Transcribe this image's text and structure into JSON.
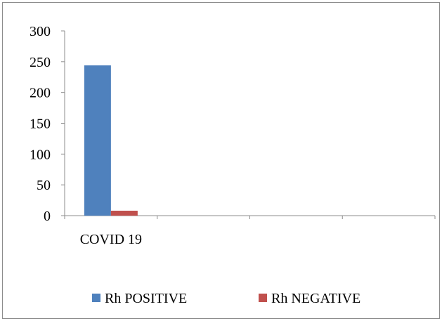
{
  "chart_data": {
    "type": "bar",
    "categories": [
      "COVID 19",
      "",
      "",
      ""
    ],
    "series": [
      {
        "name": "Rh POSITIVE",
        "color": "#4F81BD",
        "values": [
          244,
          0,
          0,
          0
        ]
      },
      {
        "name": "Rh NEGATIVE",
        "color": "#C0504D",
        "values": [
          8,
          0,
          0,
          0
        ]
      }
    ],
    "ylim": [
      0,
      300
    ],
    "yticks": [
      "0",
      "50",
      "100",
      "150",
      "200",
      "250",
      "300"
    ],
    "grid": false,
    "legend_position": "bottom"
  }
}
